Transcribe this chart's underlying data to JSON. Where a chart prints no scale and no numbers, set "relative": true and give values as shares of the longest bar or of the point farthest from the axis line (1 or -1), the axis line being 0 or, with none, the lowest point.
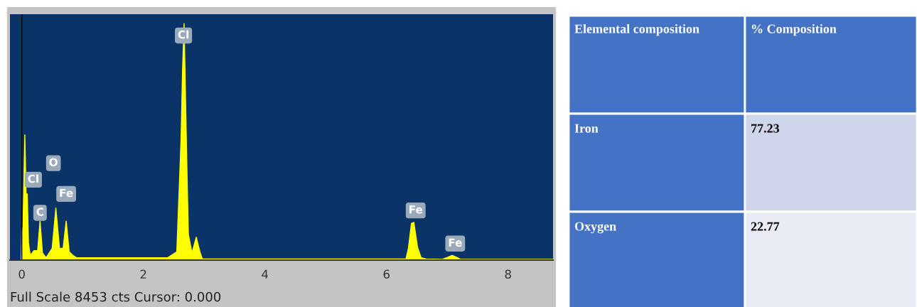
{
  "chart_data": [
    {
      "type": "area",
      "relative": true,
      "xlim": [
        -0.195,
        8.74
      ],
      "xticks": [
        0,
        2,
        4,
        6,
        8
      ],
      "grid": false,
      "x": [
        -0.195,
        -0.01,
        0.0,
        0.01,
        0.05,
        0.07,
        0.09,
        0.11,
        0.14,
        0.2,
        0.26,
        0.3,
        0.34,
        0.4,
        0.5,
        0.56,
        0.62,
        0.68,
        0.73,
        0.78,
        0.84,
        0.9,
        1.0,
        1.5,
        2.0,
        2.4,
        2.55,
        2.62,
        2.645,
        2.67,
        2.71,
        2.74,
        2.8,
        2.87,
        2.93,
        2.97,
        3.5,
        4.0,
        5.0,
        6.0,
        6.32,
        6.36,
        6.41,
        6.45,
        6.51,
        6.57,
        6.65,
        6.92,
        7.01,
        7.08,
        7.17,
        7.22,
        8.0,
        8.74
      ],
      "series": [
        {
          "color": "#ffff00",
          "values": [
            0,
            0,
            0.136,
            0.02,
            0.53,
            0.28,
            0.28,
            0.07,
            0.02,
            0.04,
            0.04,
            0.165,
            0.03,
            0.01,
            0.05,
            0.22,
            0.05,
            0.05,
            0.165,
            0.035,
            0.02,
            0.01,
            0.01,
            0.01,
            0.01,
            0.01,
            0.035,
            0.51,
            0.81,
            1.0,
            0.47,
            0.11,
            0.03,
            0.097,
            0.035,
            0.005,
            0.005,
            0.005,
            0.005,
            0.005,
            0.005,
            0.05,
            0.155,
            0.16,
            0.055,
            0.01,
            0.005,
            0.003,
            0.012,
            0.02,
            0.01,
            0.003,
            0.003,
            0.003
          ]
        }
      ],
      "ref_lines": [
        {
          "axis": "x",
          "value": 0,
          "color": "#000000"
        }
      ],
      "annotations": [
        {
          "text": "Cl",
          "x": 2.66,
          "y": 0.95
        },
        {
          "text": "Cl",
          "x": 0.19,
          "y": 0.34
        },
        {
          "text": "O",
          "x": 0.52,
          "y": 0.41
        },
        {
          "text": "Fe",
          "x": 0.73,
          "y": 0.28
        },
        {
          "text": "C",
          "x": 0.3,
          "y": 0.2
        },
        {
          "text": "Fe",
          "x": 6.48,
          "y": 0.21
        },
        {
          "text": "Fe",
          "x": 7.13,
          "y": 0.07
        },
        "Full Scale 8453 cts Cursor: 0.000"
      ]
    },
    {
      "type": "other",
      "categories": [
        "Iron",
        "Oxygen"
      ],
      "values": [
        77.23,
        22.77
      ],
      "data_labels": true,
      "annotations": [
        "Elemental composition",
        "% Composition"
      ]
    }
  ]
}
